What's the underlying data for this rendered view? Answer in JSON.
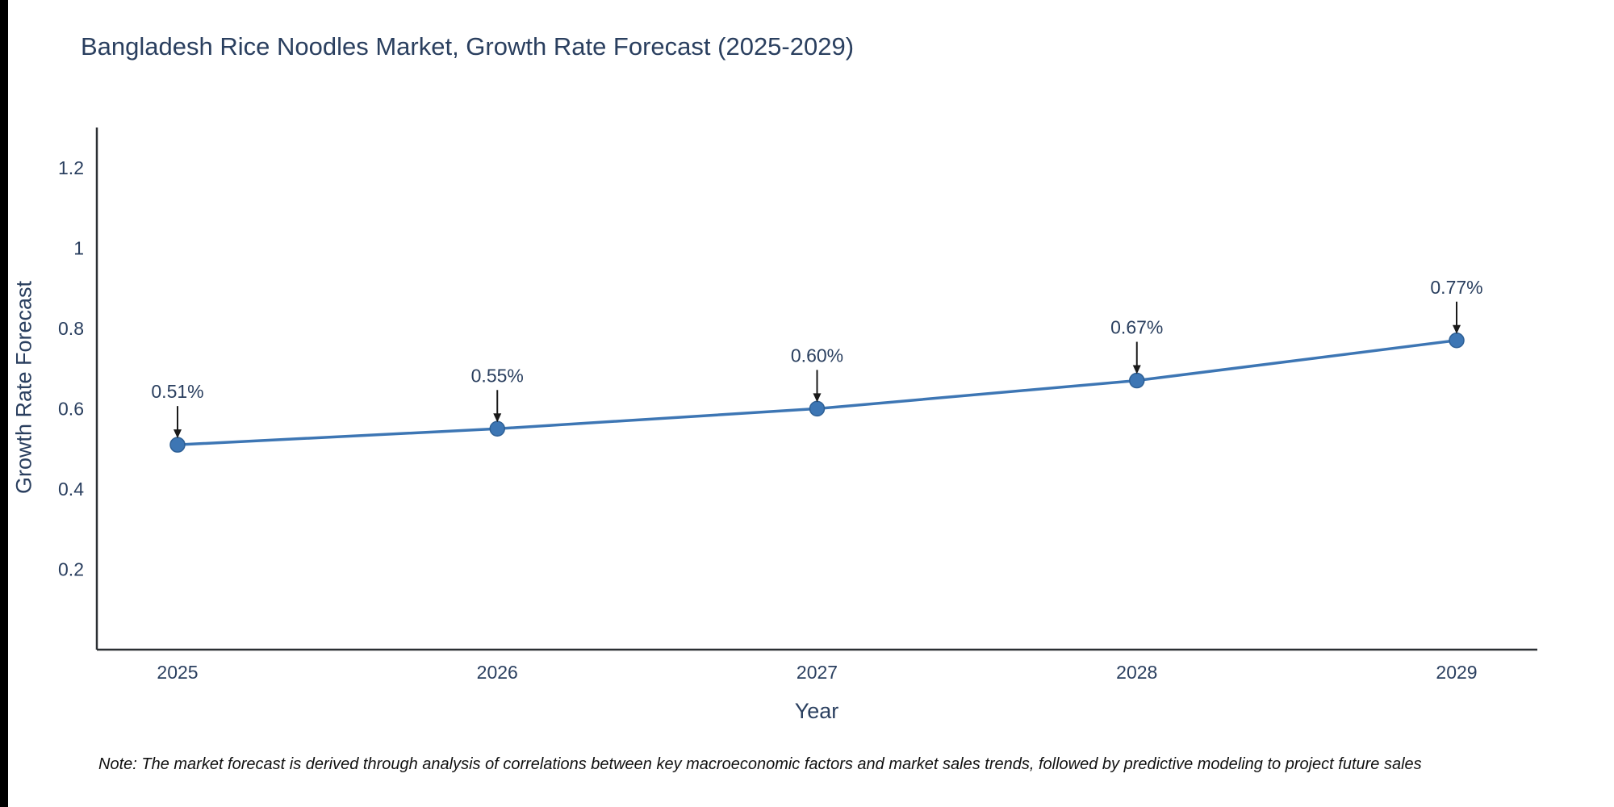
{
  "chart_data": {
    "type": "line",
    "title": "Bangladesh Rice Noodles Market, Growth Rate Forecast (2025-2029)",
    "xlabel": "Year",
    "ylabel": "Growth Rate Forecast",
    "categories": [
      "2025",
      "2026",
      "2027",
      "2028",
      "2029"
    ],
    "values": [
      0.51,
      0.55,
      0.6,
      0.67,
      0.77
    ],
    "point_labels": [
      "0.51%",
      "0.55%",
      "0.60%",
      "0.67%",
      "0.77%"
    ],
    "ylim": [
      0,
      1.3
    ],
    "yticks": [
      0.2,
      0.4,
      0.6,
      0.8,
      1,
      1.2
    ],
    "ytick_labels": [
      "0.2",
      "0.4",
      "0.6",
      "0.8",
      "1",
      "1.2"
    ],
    "grid": false,
    "legend": "none",
    "line_color": "#3d76b4",
    "marker_color": "#3d76b4",
    "marker_edge_color": "#2e6096",
    "axis_color": "#2b2f33",
    "text_color": "#2a3f5f",
    "annotation_arrow_color": "#1a1a1a"
  },
  "note": "Note: The market forecast is derived through analysis of correlations between key macroeconomic factors and market sales trends, followed by predictive modeling to project future sales"
}
